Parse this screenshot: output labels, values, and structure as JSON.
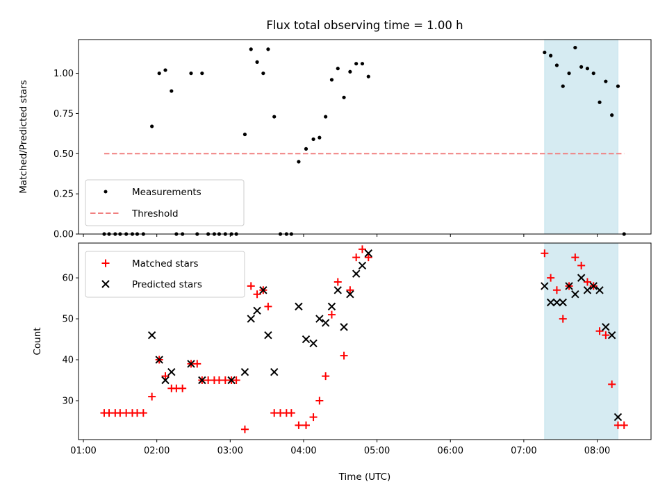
{
  "chart_data": [
    {
      "type": "scatter",
      "title": "Flux total observing time = 1.00 h",
      "xlabel": "",
      "ylabel": "Matched/Predicted stars",
      "ylim": [
        0,
        1.21
      ],
      "xlim": [
        "00:56",
        "08:44"
      ],
      "yticks": [
        "0.00",
        "0.25",
        "0.50",
        "0.75",
        "1.00"
      ],
      "highlight_span": [
        "07:17",
        "08:17"
      ],
      "highlight_color": "#add8e6",
      "legend": {
        "placement": "lower-left",
        "entries": [
          "Measurements",
          "Threshold"
        ]
      },
      "threshold": {
        "name": "Threshold",
        "value": 0.5,
        "x_start": "01:17",
        "x_end": "08:22",
        "color": "#f08080"
      },
      "series": [
        {
          "name": "Measurements",
          "color": "#000000",
          "marker": "dot",
          "points": [
            [
              "01:17",
              0
            ],
            [
              "01:21",
              0
            ],
            [
              "01:26",
              0
            ],
            [
              "01:30",
              0
            ],
            [
              "01:35",
              0
            ],
            [
              "01:40",
              0
            ],
            [
              "01:44",
              0
            ],
            [
              "01:49",
              0
            ],
            [
              "01:56",
              0.67
            ],
            [
              "02:02",
              1.0
            ],
            [
              "02:07",
              1.02
            ],
            [
              "02:12",
              0.89
            ],
            [
              "02:16",
              0
            ],
            [
              "02:21",
              0
            ],
            [
              "02:28",
              1.0
            ],
            [
              "02:33",
              0
            ],
            [
              "02:37",
              1.0
            ],
            [
              "02:42",
              0
            ],
            [
              "02:47",
              0
            ],
            [
              "02:51",
              0
            ],
            [
              "02:56",
              0
            ],
            [
              "03:01",
              0
            ],
            [
              "03:05",
              0
            ],
            [
              "03:12",
              0.62
            ],
            [
              "03:17",
              1.15
            ],
            [
              "03:22",
              1.07
            ],
            [
              "03:27",
              1.0
            ],
            [
              "03:31",
              1.15
            ],
            [
              "03:36",
              0.73
            ],
            [
              "03:41",
              0
            ],
            [
              "03:46",
              0
            ],
            [
              "03:50",
              0
            ],
            [
              "03:56",
              0.45
            ],
            [
              "04:02",
              0.53
            ],
            [
              "04:08",
              0.59
            ],
            [
              "04:13",
              0.6
            ],
            [
              "04:18",
              0.73
            ],
            [
              "04:23",
              0.96
            ],
            [
              "04:28",
              1.03
            ],
            [
              "04:33",
              0.85
            ],
            [
              "04:38",
              1.01
            ],
            [
              "04:43",
              1.06
            ],
            [
              "04:48",
              1.06
            ],
            [
              "04:53",
              0.98
            ],
            [
              "07:17",
              1.13
            ],
            [
              "07:22",
              1.11
            ],
            [
              "07:27",
              1.05
            ],
            [
              "07:32",
              0.92
            ],
            [
              "07:37",
              1.0
            ],
            [
              "07:42",
              1.16
            ],
            [
              "07:47",
              1.04
            ],
            [
              "07:52",
              1.03
            ],
            [
              "07:57",
              1.0
            ],
            [
              "08:02",
              0.82
            ],
            [
              "08:07",
              0.95
            ],
            [
              "08:12",
              0.74
            ],
            [
              "08:17",
              0.92
            ],
            [
              "08:22",
              0
            ]
          ]
        }
      ]
    },
    {
      "type": "scatter",
      "title": "",
      "xlabel": "Time (UTC)",
      "ylabel": "Count",
      "ylim": [
        20.5,
        68.5
      ],
      "xlim": [
        "00:56",
        "08:44"
      ],
      "yticks": [
        "30",
        "40",
        "50",
        "60"
      ],
      "xticks": [
        "01:00",
        "02:00",
        "03:00",
        "04:00",
        "05:00",
        "06:00",
        "07:00",
        "08:00"
      ],
      "highlight_span": [
        "07:17",
        "08:17"
      ],
      "highlight_color": "#add8e6",
      "legend": {
        "placement": "upper-left",
        "entries": [
          "Matched stars",
          "Predicted stars"
        ]
      },
      "series": [
        {
          "name": "Matched stars",
          "color": "#ff0000",
          "marker": "plus",
          "points": [
            [
              "01:17",
              27
            ],
            [
              "01:21",
              27
            ],
            [
              "01:26",
              27
            ],
            [
              "01:30",
              27
            ],
            [
              "01:35",
              27
            ],
            [
              "01:40",
              27
            ],
            [
              "01:44",
              27
            ],
            [
              "01:49",
              27
            ],
            [
              "01:56",
              31
            ],
            [
              "02:02",
              40
            ],
            [
              "02:07",
              36
            ],
            [
              "02:12",
              33
            ],
            [
              "02:16",
              33
            ],
            [
              "02:21",
              33
            ],
            [
              "02:28",
              39
            ],
            [
              "02:33",
              39
            ],
            [
              "02:37",
              35
            ],
            [
              "02:42",
              35
            ],
            [
              "02:47",
              35
            ],
            [
              "02:51",
              35
            ],
            [
              "02:56",
              35
            ],
            [
              "03:01",
              35
            ],
            [
              "03:05",
              35
            ],
            [
              "03:12",
              23
            ],
            [
              "03:17",
              58
            ],
            [
              "03:22",
              56
            ],
            [
              "03:27",
              57
            ],
            [
              "03:31",
              53
            ],
            [
              "03:36",
              27
            ],
            [
              "03:41",
              27
            ],
            [
              "03:46",
              27
            ],
            [
              "03:50",
              27
            ],
            [
              "03:56",
              24
            ],
            [
              "04:02",
              24
            ],
            [
              "04:08",
              26
            ],
            [
              "04:13",
              30
            ],
            [
              "04:18",
              36
            ],
            [
              "04:23",
              51
            ],
            [
              "04:28",
              59
            ],
            [
              "04:33",
              41
            ],
            [
              "04:38",
              57
            ],
            [
              "04:43",
              65
            ],
            [
              "04:48",
              67
            ],
            [
              "04:53",
              65
            ],
            [
              "07:17",
              66
            ],
            [
              "07:22",
              60
            ],
            [
              "07:27",
              57
            ],
            [
              "07:32",
              50
            ],
            [
              "07:37",
              58
            ],
            [
              "07:42",
              65
            ],
            [
              "07:47",
              63
            ],
            [
              "07:52",
              59
            ],
            [
              "07:57",
              58
            ],
            [
              "08:02",
              47
            ],
            [
              "08:07",
              46
            ],
            [
              "08:12",
              34
            ],
            [
              "08:17",
              24
            ],
            [
              "08:22",
              24
            ]
          ]
        },
        {
          "name": "Predicted stars",
          "color": "#000000",
          "marker": "x",
          "points": [
            [
              "01:56",
              46
            ],
            [
              "02:02",
              40
            ],
            [
              "02:07",
              35
            ],
            [
              "02:12",
              37
            ],
            [
              "02:28",
              39
            ],
            [
              "02:37",
              35
            ],
            [
              "03:01",
              35
            ],
            [
              "03:12",
              37
            ],
            [
              "03:17",
              50
            ],
            [
              "03:22",
              52
            ],
            [
              "03:27",
              57
            ],
            [
              "03:31",
              46
            ],
            [
              "03:36",
              37
            ],
            [
              "03:56",
              53
            ],
            [
              "04:02",
              45
            ],
            [
              "04:08",
              44
            ],
            [
              "04:13",
              50
            ],
            [
              "04:18",
              49
            ],
            [
              "04:23",
              53
            ],
            [
              "04:28",
              57
            ],
            [
              "04:33",
              48
            ],
            [
              "04:38",
              56
            ],
            [
              "04:43",
              61
            ],
            [
              "04:48",
              63
            ],
            [
              "04:53",
              66
            ],
            [
              "07:17",
              58
            ],
            [
              "07:22",
              54
            ],
            [
              "07:27",
              54
            ],
            [
              "07:32",
              54
            ],
            [
              "07:37",
              58
            ],
            [
              "07:42",
              56
            ],
            [
              "07:47",
              60
            ],
            [
              "07:52",
              57
            ],
            [
              "07:57",
              58
            ],
            [
              "08:02",
              57
            ],
            [
              "08:07",
              48
            ],
            [
              "08:12",
              46
            ],
            [
              "08:17",
              26
            ]
          ]
        }
      ]
    }
  ]
}
